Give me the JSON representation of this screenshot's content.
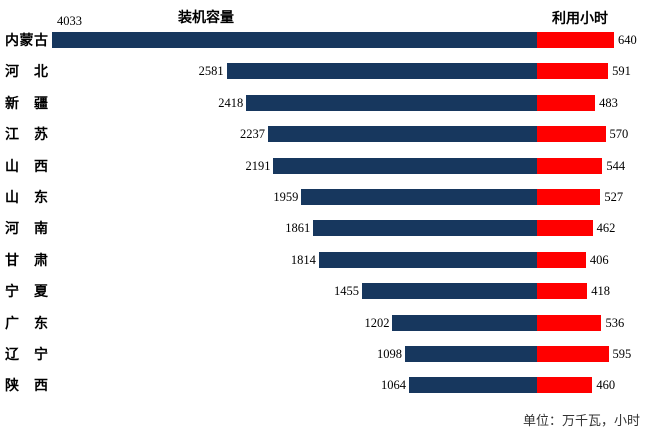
{
  "titles": {
    "left": "装机容量",
    "right": "利用小时"
  },
  "footnote": "单位：万千瓦，小时",
  "colors": {
    "capacity_bar": "#17375E",
    "hours_bar": "#FF0000"
  },
  "chart_data": {
    "type": "bar",
    "orientation": "horizontal-diverging",
    "title_left": "装机容量",
    "title_right": "利用小时",
    "categories": [
      "内蒙古",
      "河北",
      "新疆",
      "江苏",
      "山西",
      "山东",
      "河南",
      "甘肃",
      "宁夏",
      "广东",
      "辽宁",
      "陕西"
    ],
    "series": [
      {
        "name": "装机容量",
        "color": "#17375E",
        "values": [
          4033,
          2581,
          2418,
          2237,
          2191,
          1959,
          1861,
          1814,
          1455,
          1202,
          1098,
          1064
        ]
      },
      {
        "name": "利用小时",
        "color": "#FF0000",
        "values": [
          640,
          591,
          483,
          570,
          544,
          527,
          462,
          406,
          418,
          536,
          595,
          460
        ]
      }
    ],
    "value_labels_visible": true,
    "sorted_by": "装机容量 descending",
    "unit_note": "单位：万千瓦，小时",
    "legend_position": "column headers above bars",
    "grid": false
  }
}
